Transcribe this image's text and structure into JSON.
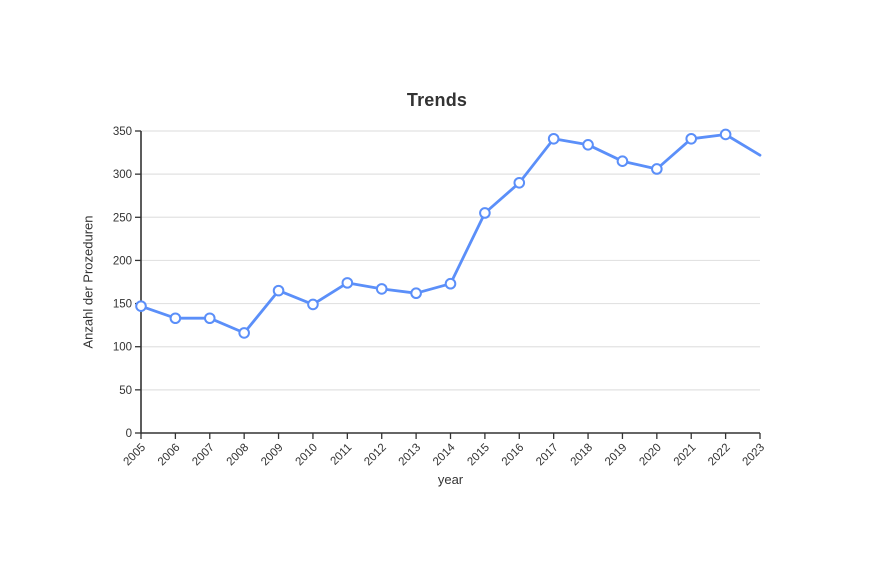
{
  "chart_data": {
    "type": "line",
    "title": "Trends",
    "xlabel": "year",
    "ylabel": "Anzahl der Prozeduren",
    "categories": [
      "2005",
      "2006",
      "2007",
      "2008",
      "2009",
      "2010",
      "2011",
      "2012",
      "2013",
      "2014",
      "2015",
      "2016",
      "2017",
      "2018",
      "2019",
      "2020",
      "2021",
      "2022",
      "2023"
    ],
    "series": [
      {
        "values": [
          147,
          133,
          133,
          116,
          165,
          149,
          174,
          167,
          162,
          173,
          255,
          290,
          341,
          334,
          315,
          306,
          341,
          346,
          322
        ]
      }
    ],
    "ylim": [
      0,
      350
    ],
    "yticks": [
      0,
      50,
      100,
      150,
      200,
      250,
      300,
      350
    ],
    "grid": true,
    "legend_position": "none",
    "x_tick_rotation_deg": -45,
    "last_point_has_marker": false,
    "colors": {
      "line": "#5b8ff9",
      "marker_fill": "#ffffff",
      "grid": "#e2e2e2",
      "axis": "#333333",
      "text": "#333333",
      "title": "#333333",
      "background": "#ffffff"
    }
  }
}
